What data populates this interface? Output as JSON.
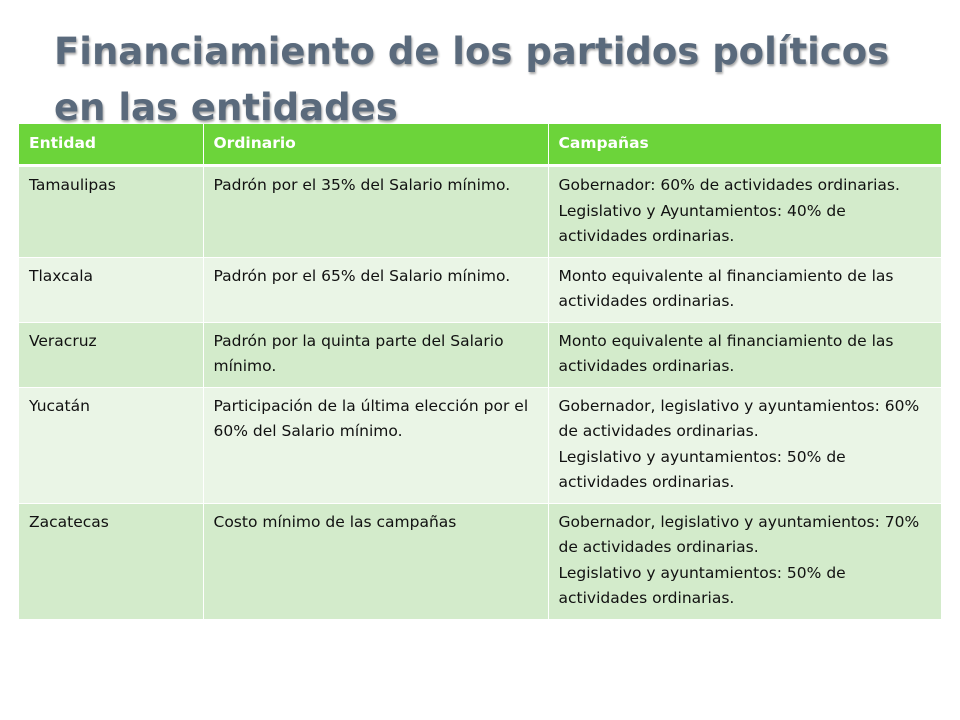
{
  "slide": {
    "title_lines": [
      "Financiamiento de los partidos políticos",
      "en las entidades"
    ]
  },
  "table": {
    "headers": [
      "Entidad",
      "Ordinario",
      "Campañas"
    ],
    "rows": [
      {
        "entidad": "Tamaulipas",
        "ordinario": "Padrón por el 35% del Salario mínimo.",
        "campanas": [
          "Gobernador: 60% de actividades ordinarias.",
          "Legislativo y Ayuntamientos: 40% de actividades ordinarias."
        ]
      },
      {
        "entidad": "Tlaxcala",
        "ordinario": "Padrón por el 65% del Salario mínimo.",
        "campanas": [
          "Monto equivalente al financiamiento de las actividades ordinarias."
        ]
      },
      {
        "entidad": "Veracruz",
        "ordinario": "Padrón por la quinta parte del Salario mínimo.",
        "campanas": [
          "Monto equivalente al financiamiento de las actividades ordinarias."
        ]
      },
      {
        "entidad": "Yucatán",
        "ordinario": "Participación de la última elección por el 60% del Salario mínimo.",
        "campanas": [
          "Gobernador, legislativo y ayuntamientos: 60% de actividades ordinarias.",
          "Legislativo y ayuntamientos: 50% de actividades ordinarias."
        ]
      },
      {
        "entidad": "Zacatecas",
        "ordinario": "Costo mínimo de las campañas",
        "campanas": [
          "Gobernador, legislativo y ayuntamientos: 70% de actividades ordinarias.",
          "Legislativo y ayuntamientos: 50% de actividades ordinarias."
        ]
      }
    ]
  }
}
